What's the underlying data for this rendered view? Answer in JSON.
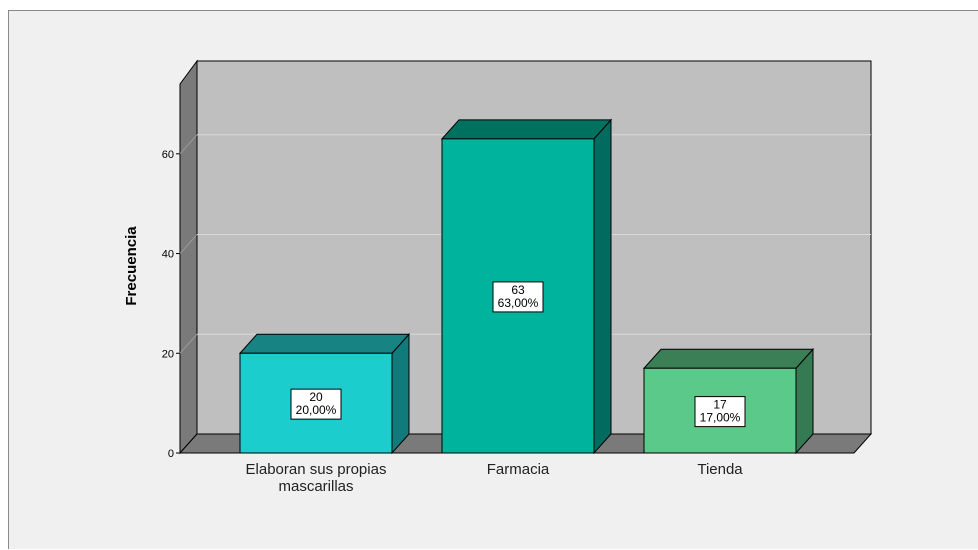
{
  "chart_data": {
    "type": "bar",
    "title": "",
    "xlabel": "",
    "ylabel": "Frecuencia",
    "ylim": [
      0,
      74
    ],
    "yticks": [
      0,
      20,
      40,
      60
    ],
    "grid": true,
    "legend": "none",
    "three_d": true,
    "categories": [
      [
        "Elaboran sus propias",
        "mascarillas"
      ],
      [
        "Farmacia"
      ],
      [
        "Tienda"
      ]
    ],
    "values": [
      20,
      63,
      17
    ],
    "percent_labels": [
      "20,00%",
      "63,00%",
      "17,00%"
    ],
    "colors": [
      {
        "front": "#1ccdcd",
        "side": "#117a7a",
        "top": "#178383"
      },
      {
        "front": "#00b39c",
        "side": "#006b5e",
        "top": "#00705f"
      },
      {
        "front": "#5bc98a",
        "side": "#347a52",
        "top": "#3a7f56"
      }
    ],
    "wall_color": "#bfbfbf",
    "floor_color": "#7a7a7a"
  }
}
